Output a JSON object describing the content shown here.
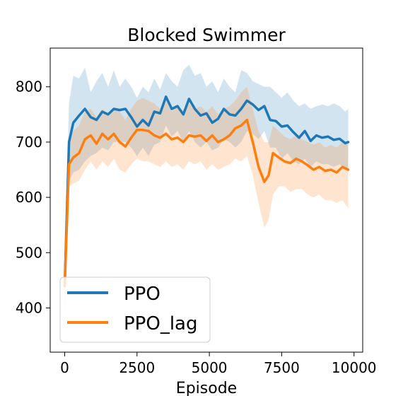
{
  "chart_data": {
    "type": "line",
    "title": "Blocked Swimmer",
    "xlabel": "Episode",
    "ylabel": "",
    "xlim": [
      -500,
      10300
    ],
    "ylim": [
      320,
      870
    ],
    "xticks": [
      0,
      2500,
      5000,
      7500,
      10000
    ],
    "yticks": [
      400,
      500,
      600,
      700,
      800
    ],
    "grid": false,
    "legend_position": "lower-left",
    "series": [
      {
        "name": "PPO",
        "color": "#1f77b4",
        "band_color": "#1f77b4",
        "x": [
          0,
          150,
          300,
          500,
          700,
          900,
          1100,
          1300,
          1500,
          1700,
          1900,
          2100,
          2300,
          2500,
          2700,
          2900,
          3100,
          3300,
          3500,
          3700,
          3900,
          4100,
          4300,
          4500,
          4700,
          4900,
          5100,
          5300,
          5500,
          5700,
          5900,
          6100,
          6300,
          6500,
          6700,
          6900,
          7100,
          7300,
          7500,
          7700,
          7900,
          8100,
          8300,
          8500,
          8700,
          8900,
          9100,
          9300,
          9500,
          9700,
          9800
        ],
        "values": [
          440,
          700,
          735,
          748,
          760,
          745,
          740,
          755,
          750,
          760,
          758,
          760,
          745,
          728,
          740,
          730,
          755,
          752,
          782,
          760,
          765,
          750,
          778,
          760,
          748,
          752,
          735,
          742,
          760,
          750,
          748,
          760,
          775,
          768,
          758,
          765,
          740,
          738,
          728,
          730,
          718,
          708,
          720,
          702,
          712,
          708,
          710,
          704,
          706,
          698,
          700
        ],
        "upper": [
          470,
          770,
          820,
          815,
          835,
          790,
          810,
          825,
          800,
          830,
          800,
          815,
          800,
          780,
          800,
          790,
          815,
          795,
          825,
          810,
          800,
          830,
          840,
          820,
          825,
          800,
          810,
          790,
          815,
          800,
          790,
          830,
          825,
          810,
          805,
          800,
          800,
          790,
          780,
          790,
          775,
          765,
          770,
          760,
          765,
          768,
          765,
          770,
          765,
          755,
          760
        ],
        "lower": [
          400,
          630,
          645,
          650,
          665,
          675,
          680,
          690,
          685,
          700,
          700,
          700,
          690,
          675,
          690,
          675,
          695,
          700,
          730,
          710,
          720,
          700,
          720,
          700,
          690,
          700,
          685,
          690,
          705,
          700,
          690,
          700,
          720,
          715,
          705,
          720,
          690,
          690,
          670,
          680,
          665,
          660,
          670,
          655,
          665,
          660,
          660,
          655,
          660,
          650,
          650
        ]
      },
      {
        "name": "PPO_lag",
        "color": "#ff7f0e",
        "band_color": "#ff7f0e",
        "x": [
          0,
          150,
          300,
          500,
          700,
          900,
          1100,
          1300,
          1500,
          1700,
          1900,
          2100,
          2300,
          2500,
          2700,
          2900,
          3100,
          3300,
          3500,
          3700,
          3900,
          4100,
          4300,
          4500,
          4700,
          4900,
          5100,
          5300,
          5500,
          5700,
          5900,
          6100,
          6300,
          6500,
          6700,
          6900,
          7050,
          7200,
          7400,
          7600,
          7800,
          8000,
          8200,
          8400,
          8600,
          8800,
          9000,
          9200,
          9400,
          9600,
          9800
        ],
        "values": [
          440,
          660,
          672,
          680,
          705,
          712,
          697,
          715,
          705,
          715,
          700,
          692,
          708,
          722,
          722,
          720,
          712,
          708,
          715,
          705,
          708,
          700,
          712,
          710,
          712,
          702,
          712,
          700,
          705,
          712,
          725,
          730,
          740,
          700,
          655,
          628,
          640,
          680,
          672,
          665,
          662,
          670,
          665,
          658,
          650,
          655,
          648,
          650,
          645,
          655,
          650
        ],
        "upper": [
          470,
          700,
          720,
          730,
          755,
          760,
          745,
          760,
          750,
          760,
          755,
          740,
          760,
          775,
          780,
          775,
          770,
          760,
          775,
          755,
          765,
          750,
          770,
          760,
          765,
          755,
          765,
          750,
          760,
          765,
          775,
          790,
          800,
          760,
          720,
          700,
          700,
          730,
          720,
          710,
          705,
          712,
          705,
          700,
          695,
          700,
          690,
          695,
          690,
          700,
          700
        ],
        "lower": [
          380,
          620,
          625,
          630,
          650,
          665,
          650,
          665,
          655,
          670,
          650,
          645,
          660,
          670,
          665,
          665,
          660,
          655,
          665,
          655,
          660,
          650,
          665,
          660,
          665,
          650,
          660,
          650,
          655,
          660,
          670,
          665,
          675,
          640,
          590,
          545,
          560,
          605,
          620,
          620,
          610,
          615,
          615,
          605,
          600,
          605,
          595,
          595,
          590,
          595,
          580
        ]
      }
    ]
  }
}
